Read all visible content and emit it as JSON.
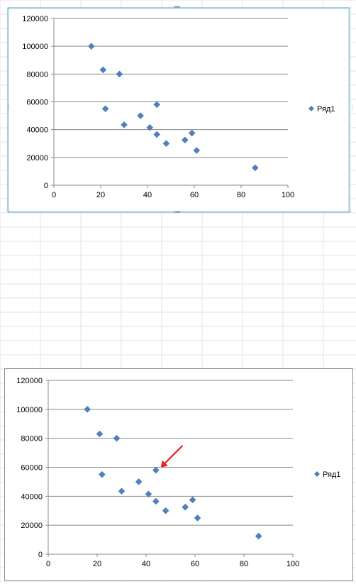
{
  "chart_data": [
    {
      "type": "scatter",
      "title": "",
      "xlabel": "",
      "ylabel": "",
      "xlim": [
        0,
        100
      ],
      "ylim": [
        0,
        120000
      ],
      "x_ticks": [
        "0",
        "20",
        "40",
        "60",
        "80",
        "100"
      ],
      "y_ticks": [
        "0",
        "20000",
        "40000",
        "60000",
        "80000",
        "100000",
        "120000"
      ],
      "grid": "horizontal",
      "legend_position": "right",
      "marker": "diamond",
      "color": "#4f81bd",
      "selected": true,
      "series": [
        {
          "name": "Ряд1",
          "points": [
            {
              "x": 16,
              "y": 100000
            },
            {
              "x": 21,
              "y": 83000
            },
            {
              "x": 28,
              "y": 80000
            },
            {
              "x": 22,
              "y": 55000
            },
            {
              "x": 30,
              "y": 43500
            },
            {
              "x": 37,
              "y": 50000
            },
            {
              "x": 41,
              "y": 41500
            },
            {
              "x": 44,
              "y": 58000
            },
            {
              "x": 44,
              "y": 36500
            },
            {
              "x": 48,
              "y": 30000
            },
            {
              "x": 56,
              "y": 32500
            },
            {
              "x": 59,
              "y": 37500
            },
            {
              "x": 61,
              "y": 25000
            },
            {
              "x": 86,
              "y": 12500
            }
          ]
        }
      ]
    },
    {
      "type": "scatter",
      "title": "",
      "xlabel": "",
      "ylabel": "",
      "xlim": [
        0,
        100
      ],
      "ylim": [
        0,
        120000
      ],
      "x_ticks": [
        "0",
        "20",
        "40",
        "60",
        "80",
        "100"
      ],
      "y_ticks": [
        "0",
        "20000",
        "40000",
        "60000",
        "80000",
        "100000",
        "120000"
      ],
      "grid": "horizontal",
      "legend_position": "right",
      "marker": "diamond",
      "color": "#4f81bd",
      "selected": false,
      "annotation": {
        "type": "arrow",
        "color": "#e8231e",
        "target": {
          "x": 44,
          "y": 58000
        }
      },
      "series": [
        {
          "name": "Ряд1",
          "points": [
            {
              "x": 16,
              "y": 100000
            },
            {
              "x": 21,
              "y": 83000
            },
            {
              "x": 28,
              "y": 80000
            },
            {
              "x": 22,
              "y": 55000
            },
            {
              "x": 30,
              "y": 43500
            },
            {
              "x": 37,
              "y": 50000
            },
            {
              "x": 41,
              "y": 41500
            },
            {
              "x": 44,
              "y": 58000
            },
            {
              "x": 44,
              "y": 36500
            },
            {
              "x": 48,
              "y": 30000
            },
            {
              "x": 56,
              "y": 32500
            },
            {
              "x": 59,
              "y": 37500
            },
            {
              "x": 61,
              "y": 25000
            },
            {
              "x": 86,
              "y": 12500
            }
          ]
        }
      ]
    }
  ]
}
